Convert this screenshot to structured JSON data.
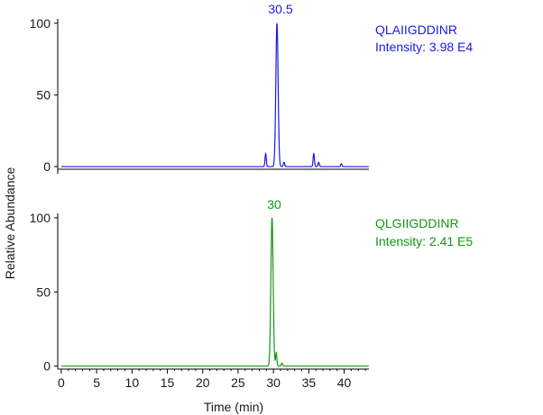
{
  "chart_data": [
    {
      "type": "line",
      "peptide": "QLAIIGDDINR",
      "intensity": "Intensity: 3.98 E4",
      "peak_label": "30.5",
      "color": "#1a1ae6",
      "ylabel": "Relative Abundance",
      "xlim": [
        -0.5,
        43.5
      ],
      "ylim": [
        -5,
        103
      ],
      "yticks": [
        "0",
        "50",
        "100"
      ],
      "peaks": [
        {
          "x": 28.9,
          "y": 9
        },
        {
          "x": 30.5,
          "y": 100
        },
        {
          "x": 31.5,
          "y": 3
        },
        {
          "x": 35.7,
          "y": 9
        },
        {
          "x": 36.4,
          "y": 3
        },
        {
          "x": 39.6,
          "y": 2
        }
      ],
      "baseline": 0
    },
    {
      "type": "line",
      "peptide": "QLGIIGDDINR",
      "intensity": "Intensity: 2.41 E5",
      "peak_label": "30",
      "color": "#149614",
      "xlabel": "Time (min)",
      "xticks": [
        0,
        5,
        10,
        15,
        20,
        25,
        30,
        35,
        40
      ],
      "xlim": [
        -0.5,
        43.5
      ],
      "ylim": [
        -2,
        103
      ],
      "yticks": [
        "0",
        "50",
        "100"
      ],
      "peaks": [
        {
          "x": 29.8,
          "y": 100
        },
        {
          "x": 30.4,
          "y": 9
        },
        {
          "x": 31.2,
          "y": 2
        }
      ],
      "baseline": 0
    }
  ]
}
